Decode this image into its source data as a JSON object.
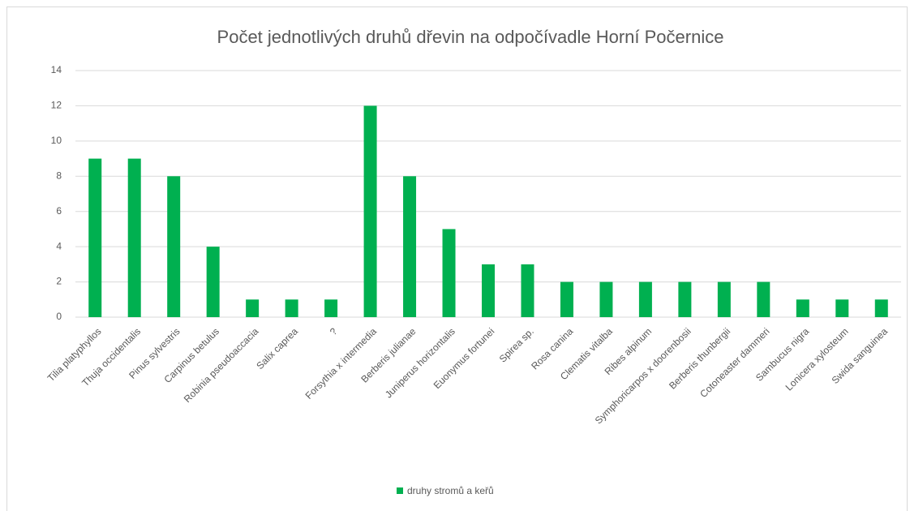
{
  "chart_data": {
    "type": "bar",
    "title": "Počet jednotlivých druhů dřevin na odpočívadle Horní Počernice",
    "categories": [
      "Tilia platyphyllos",
      "Thuja occidentalis",
      "Pinus sylvestris",
      "Carpinus betulus",
      "Robinia pseudoaccacia",
      "Salix caprea",
      "?",
      "Forsythia x intermedia",
      "Berberis julianae",
      "Juniperus horizontalis",
      "Euonymus fortunei",
      "Spirea sp.",
      "Rosa canina",
      "Clematis vitalba",
      "Ribes alpinum",
      "Symphoricarpos x doorenbosii",
      "Berberis thunbergii",
      "Cotoneaster dammeri",
      "Sambucus nigra",
      "Lonicera xylosteum",
      "Swida sanguinea"
    ],
    "series": [
      {
        "name": "druhy stromů a keřů",
        "color": "#00b050",
        "values": [
          9,
          9,
          8,
          4,
          1,
          1,
          1,
          12,
          8,
          5,
          3,
          3,
          2,
          2,
          2,
          2,
          2,
          2,
          1,
          1,
          1
        ]
      }
    ],
    "ylim": [
      0,
      14
    ],
    "yticks": [
      0,
      2,
      4,
      6,
      8,
      10,
      12,
      14
    ],
    "grid": true,
    "legend": "bottom"
  }
}
